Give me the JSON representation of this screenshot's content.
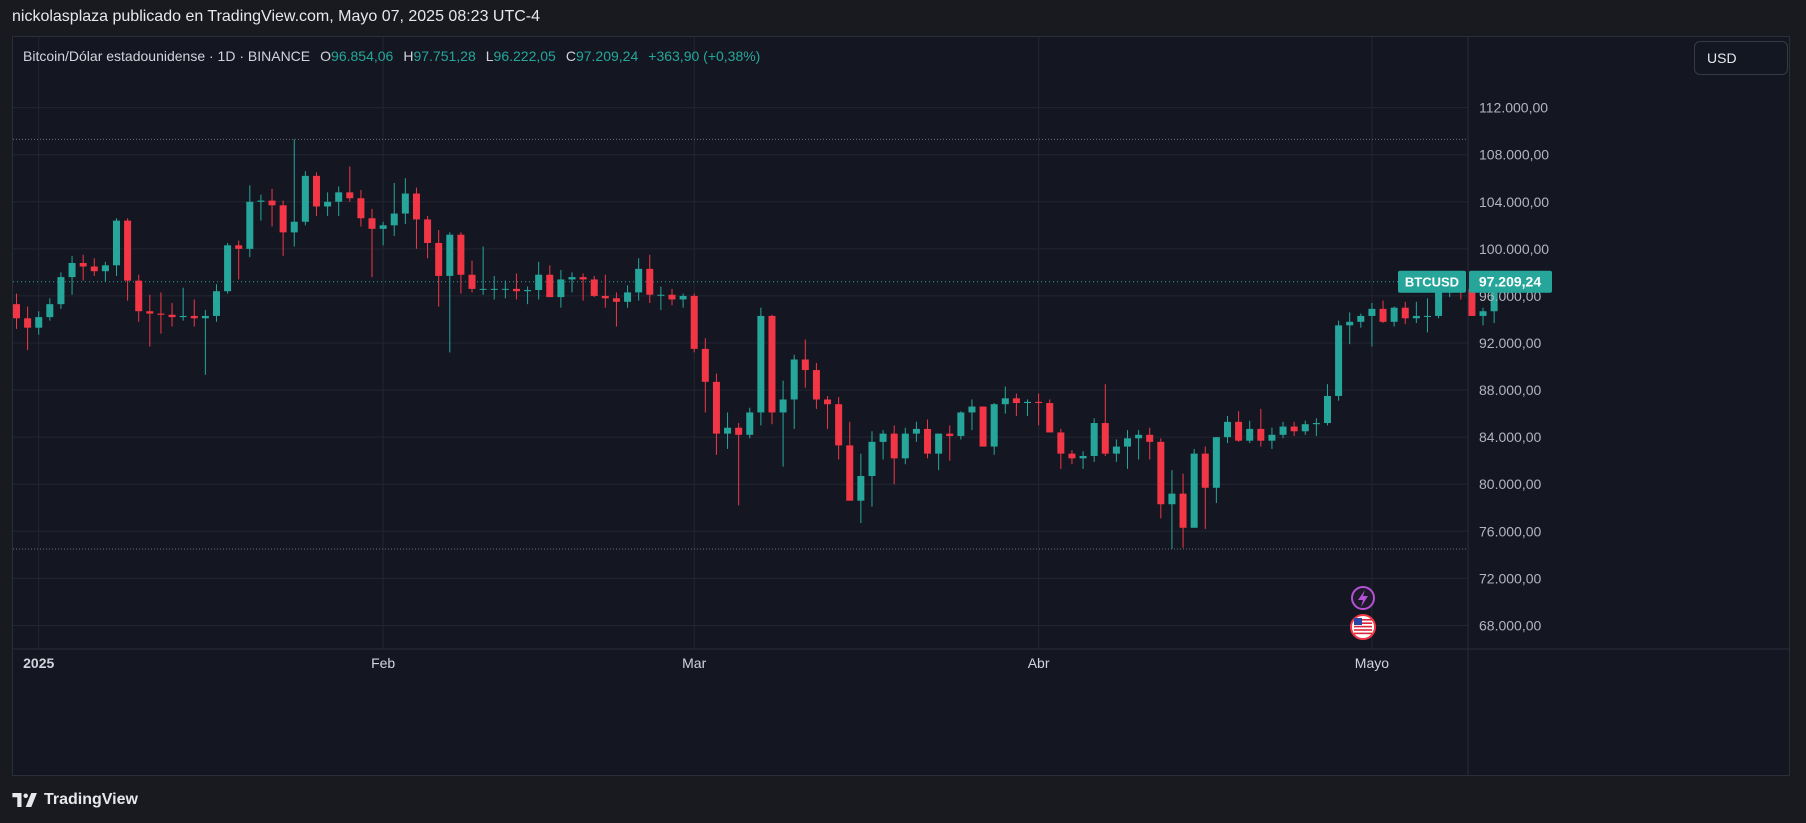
{
  "header": {
    "publisher": "nickolasplaza publicado en TradingView.com, Mayo 07, 2025 08:23 UTC-4"
  },
  "legend": {
    "symbol": "Bitcoin/Dólar estadounidense · 1D · BINANCE",
    "open_label": "O",
    "open": "96.854,06",
    "high_label": "H",
    "high": "97.751,28",
    "low_label": "L",
    "low": "96.222,05",
    "close_label": "C",
    "close": "97.209,24",
    "change": "+363,90 (+0,38%)"
  },
  "currency_button": "USD",
  "footer": {
    "brand": "TradingView"
  },
  "colors": {
    "up": "#26a69a",
    "down": "#f23645",
    "background": "#141722",
    "grid": "#222631"
  },
  "icons": [
    "lightning-event-icon",
    "us-flag-event-icon",
    "tradingview-logo-icon"
  ],
  "chart_data": {
    "type": "candlestick",
    "title": "Bitcoin/Dólar estadounidense · 1D · BINANCE",
    "symbol_tag": "BTCUSD",
    "last_price": 97209.24,
    "last_price_label": "97.209,24",
    "ylim": [
      66000,
      118000
    ],
    "y_ticks": [
      68000,
      72000,
      76000,
      80000,
      84000,
      88000,
      92000,
      96000,
      100000,
      104000,
      108000,
      112000
    ],
    "y_tick_labels": [
      "68.000,00",
      "72.000,00",
      "76.000,00",
      "80.000,00",
      "84.000,00",
      "88.000,00",
      "92.000,00",
      "96.000,00",
      "100.000,00",
      "104.000,00",
      "108.000,00",
      "112.000,00"
    ],
    "x_tick_labels": [
      {
        "label": "2025",
        "index": 2
      },
      {
        "label": "Feb",
        "index": 33
      },
      {
        "label": "Mar",
        "index": 61
      },
      {
        "label": "Abr",
        "index": 92
      },
      {
        "label": "Mayo",
        "index": 122
      }
    ],
    "high_line": 109300,
    "low_line": 74500,
    "grid": true,
    "candles": [
      [
        95300,
        96200,
        93200,
        94100
      ],
      [
        94100,
        95100,
        91400,
        93300
      ],
      [
        93300,
        94700,
        92700,
        94200
      ],
      [
        94200,
        95800,
        93900,
        95300
      ],
      [
        95300,
        98000,
        94900,
        97600
      ],
      [
        97600,
        99400,
        96100,
        98800
      ],
      [
        98800,
        99500,
        97300,
        98500
      ],
      [
        98500,
        99200,
        97700,
        98100
      ],
      [
        98100,
        98900,
        97200,
        98600
      ],
      [
        98600,
        102600,
        97700,
        102400
      ],
      [
        102400,
        102600,
        95600,
        97300
      ],
      [
        97300,
        97800,
        93800,
        94700
      ],
      [
        94700,
        96100,
        91700,
        94500
      ],
      [
        94500,
        96300,
        92800,
        94400
      ],
      [
        94400,
        95400,
        93400,
        94200
      ],
      [
        94200,
        96700,
        93900,
        94300
      ],
      [
        94300,
        95700,
        93400,
        94100
      ],
      [
        94100,
        94800,
        89300,
        94300
      ],
      [
        94300,
        97000,
        93800,
        96400
      ],
      [
        96400,
        100500,
        96200,
        100300
      ],
      [
        100300,
        100700,
        97400,
        100000
      ],
      [
        100000,
        105400,
        99300,
        104000
      ],
      [
        104000,
        104600,
        102400,
        104100
      ],
      [
        104100,
        105100,
        101900,
        103700
      ],
      [
        103700,
        104100,
        99400,
        101400
      ],
      [
        101400,
        109300,
        100200,
        102300
      ],
      [
        102300,
        106600,
        102000,
        106200
      ],
      [
        106200,
        106500,
        102800,
        103600
      ],
      [
        103600,
        104800,
        102800,
        104000
      ],
      [
        104000,
        105300,
        102800,
        104800
      ],
      [
        104800,
        107000,
        104000,
        104300
      ],
      [
        104300,
        105000,
        101900,
        102600
      ],
      [
        102600,
        103400,
        97600,
        101700
      ],
      [
        101700,
        102300,
        100300,
        102000
      ],
      [
        102000,
        105600,
        101100,
        103000
      ],
      [
        103000,
        106000,
        102100,
        104700
      ],
      [
        104700,
        105200,
        100000,
        102500
      ],
      [
        102500,
        102800,
        99200,
        100500
      ],
      [
        100500,
        101600,
        95100,
        97700
      ],
      [
        97700,
        101400,
        91200,
        101200
      ],
      [
        101200,
        101400,
        96200,
        97800
      ],
      [
        97800,
        99000,
        96300,
        96600
      ],
      [
        96600,
        100200,
        96100,
        96600
      ],
      [
        96600,
        97700,
        95700,
        96600
      ],
      [
        96600,
        97300,
        95800,
        96600
      ],
      [
        96600,
        97900,
        95700,
        96400
      ],
      [
        96400,
        96800,
        95300,
        96500
      ],
      [
        96500,
        98900,
        95700,
        97800
      ],
      [
        97800,
        98600,
        95900,
        95900
      ],
      [
        95900,
        98200,
        95000,
        97400
      ],
      [
        97400,
        98000,
        96300,
        97600
      ],
      [
        97600,
        97900,
        95600,
        97400
      ],
      [
        97400,
        97700,
        95900,
        96000
      ],
      [
        96000,
        97800,
        95000,
        95800
      ],
      [
        95800,
        96300,
        93400,
        95500
      ],
      [
        95500,
        96900,
        95000,
        96300
      ],
      [
        96300,
        99200,
        95600,
        98300
      ],
      [
        98300,
        99500,
        95400,
        96100
      ],
      [
        96100,
        96800,
        94800,
        96100
      ],
      [
        96100,
        96600,
        95200,
        95700
      ],
      [
        95700,
        96200,
        95000,
        96000
      ],
      [
        96000,
        96200,
        91200,
        91500
      ],
      [
        91500,
        92400,
        86100,
        88700
      ],
      [
        88700,
        89400,
        82500,
        84300
      ],
      [
        84300,
        86100,
        83000,
        84800
      ],
      [
        84800,
        85200,
        78200,
        84200
      ],
      [
        84200,
        86500,
        83900,
        86100
      ],
      [
        86100,
        95000,
        85000,
        94300
      ],
      [
        94300,
        94400,
        85100,
        86100
      ],
      [
        86100,
        88800,
        81500,
        87200
      ],
      [
        87200,
        91000,
        84700,
        90600
      ],
      [
        90600,
        92300,
        88200,
        89700
      ],
      [
        89700,
        90300,
        86400,
        87200
      ],
      [
        87200,
        87500,
        84700,
        86800
      ],
      [
        86800,
        87400,
        82100,
        83300
      ],
      [
        83300,
        85300,
        78900,
        78600
      ],
      [
        78600,
        82600,
        76700,
        80700
      ],
      [
        80700,
        84500,
        78100,
        83600
      ],
      [
        83600,
        84600,
        82100,
        84300
      ],
      [
        84300,
        85000,
        80000,
        82200
      ],
      [
        82200,
        84800,
        81700,
        84300
      ],
      [
        84300,
        85300,
        83600,
        84700
      ],
      [
        84700,
        85500,
        82200,
        82600
      ],
      [
        82600,
        84300,
        81200,
        84300
      ],
      [
        84300,
        85000,
        82000,
        84100
      ],
      [
        84100,
        86200,
        83800,
        86100
      ],
      [
        86100,
        87200,
        84600,
        86600
      ],
      [
        86600,
        86600,
        83200,
        83200
      ],
      [
        83200,
        86900,
        82500,
        86800
      ],
      [
        86800,
        88300,
        86000,
        87300
      ],
      [
        87300,
        87700,
        85800,
        86900
      ],
      [
        86900,
        87200,
        85800,
        87000
      ],
      [
        87000,
        87700,
        85000,
        86900
      ],
      [
        86900,
        87200,
        84600,
        84400
      ],
      [
        84400,
        84700,
        81300,
        82600
      ],
      [
        82600,
        82900,
        81700,
        82200
      ],
      [
        82200,
        82800,
        81300,
        82400
      ],
      [
        82400,
        85600,
        81900,
        85200
      ],
      [
        85200,
        88500,
        82400,
        82600
      ],
      [
        82600,
        83800,
        81900,
        83200
      ],
      [
        83200,
        84600,
        81300,
        83900
      ],
      [
        83900,
        84600,
        82100,
        84200
      ],
      [
        84200,
        84800,
        82100,
        83600
      ],
      [
        83600,
        83900,
        77100,
        78300
      ],
      [
        78300,
        81200,
        74500,
        79200
      ],
      [
        79200,
        80900,
        74600,
        76300
      ],
      [
        76300,
        83000,
        76400,
        82600
      ],
      [
        82600,
        83200,
        76200,
        79700
      ],
      [
        79700,
        84000,
        78400,
        84000
      ],
      [
        84000,
        85800,
        83500,
        85300
      ],
      [
        85300,
        86200,
        83600,
        83700
      ],
      [
        83700,
        85400,
        83500,
        84700
      ],
      [
        84700,
        86400,
        83200,
        83700
      ],
      [
        83700,
        84800,
        83000,
        84200
      ],
      [
        84200,
        85300,
        83900,
        84900
      ],
      [
        84900,
        85300,
        84100,
        84500
      ],
      [
        84500,
        85400,
        84200,
        85100
      ],
      [
        85100,
        85600,
        84100,
        85200
      ],
      [
        85200,
        88500,
        85000,
        87500
      ],
      [
        87500,
        93900,
        87100,
        93500
      ],
      [
        93500,
        94600,
        91900,
        93800
      ],
      [
        93800,
        94500,
        93300,
        94300
      ],
      [
        94300,
        95400,
        91700,
        94900
      ],
      [
        94900,
        95600,
        93700,
        93800
      ],
      [
        93800,
        95100,
        93400,
        95000
      ],
      [
        95000,
        95500,
        93600,
        94100
      ],
      [
        94100,
        95500,
        93700,
        94300
      ],
      [
        94300,
        95800,
        92900,
        94300
      ],
      [
        94300,
        97500,
        94100,
        96700
      ],
      [
        96700,
        97900,
        95900,
        97200
      ],
      [
        97200,
        97400,
        95700,
        96600
      ],
      [
        96600,
        96900,
        94300,
        94300
      ],
      [
        94300,
        95000,
        93500,
        94700
      ],
      [
        94700,
        97000,
        93700,
        96900
      ],
      [
        96854,
        97751,
        96222,
        97209
      ]
    ]
  }
}
